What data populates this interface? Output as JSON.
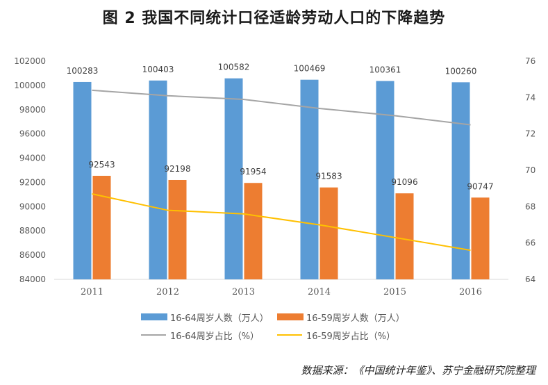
{
  "title": "图 2  我国不同统计口径适龄劳动人口的下降趋势",
  "source": "数据来源：《中国统计年鉴》、苏宁金融研究院整理",
  "colors": {
    "series1": "#5b9bd5",
    "series2": "#ed7d31",
    "series3": "#a5a5a5",
    "series4": "#ffc000"
  },
  "chart_data": {
    "type": "bar",
    "categories": [
      "2011",
      "2012",
      "2013",
      "2014",
      "2015",
      "2016"
    ],
    "series": [
      {
        "name": "16-64周岁人数（万人）",
        "type": "bar",
        "axis": "left",
        "values": [
          100283,
          100403,
          100582,
          100469,
          100361,
          100260
        ],
        "labels": [
          "100283",
          "100403",
          "100582",
          "100469",
          "100361",
          "100260"
        ]
      },
      {
        "name": "16-59周岁人数（万人）",
        "type": "bar",
        "axis": "left",
        "values": [
          92543,
          92198,
          91954,
          91583,
          91096,
          90747
        ],
        "labels": [
          "92543",
          "92198",
          "91954",
          "91583",
          "91096",
          "90747"
        ]
      },
      {
        "name": "16-64周岁占比（%）",
        "type": "line",
        "axis": "right",
        "values": [
          74.4,
          74.1,
          73.9,
          73.4,
          73.0,
          72.5
        ]
      },
      {
        "name": "16-59周岁占比（%）",
        "type": "line",
        "axis": "right",
        "values": [
          68.7,
          67.8,
          67.6,
          67.0,
          66.3,
          65.6
        ]
      }
    ],
    "y_left": {
      "min": 84000,
      "max": 102000,
      "ticks": [
        "84000",
        "86000",
        "88000",
        "90000",
        "92000",
        "94000",
        "96000",
        "98000",
        "100000",
        "102000"
      ]
    },
    "y_right": {
      "min": 64,
      "max": 76,
      "ticks": [
        "64",
        "66",
        "68",
        "70",
        "72",
        "74",
        "76"
      ]
    },
    "grid": false,
    "legend_position": "bottom"
  }
}
